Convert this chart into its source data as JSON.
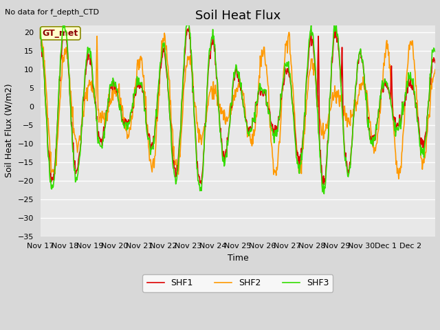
{
  "title": "Soil Heat Flux",
  "xlabel": "Time",
  "ylabel": "Soil Heat Flux (W/m2)",
  "top_left_text": "No data for f_depth_CTD",
  "annotation_box": "GT_met",
  "ylim": [
    -35,
    22
  ],
  "yticks": [
    -35,
    -30,
    -25,
    -20,
    -15,
    -10,
    -5,
    0,
    5,
    10,
    15,
    20
  ],
  "xtick_labels": [
    "Nov 17",
    "Nov 18",
    "Nov 19",
    "Nov 20",
    "Nov 21",
    "Nov 22",
    "Nov 23",
    "Nov 24",
    "Nov 25",
    "Nov 26",
    "Nov 27",
    "Nov 28",
    "Nov 29",
    "Nov 30",
    "Dec 1",
    "Dec 2"
  ],
  "line_colors": {
    "SHF1": "#dd0000",
    "SHF2": "#ff9900",
    "SHF3": "#33dd00"
  },
  "legend_labels": [
    "SHF1",
    "SHF2",
    "SHF3"
  ],
  "fig_bg_color": "#d8d8d8",
  "plot_bg_color": "#e8e8e8",
  "grid_color": "#ffffff",
  "legend_bg": "#ffffff",
  "title_fontsize": 13,
  "label_fontsize": 9,
  "tick_fontsize": 8,
  "linewidth": 1.2
}
